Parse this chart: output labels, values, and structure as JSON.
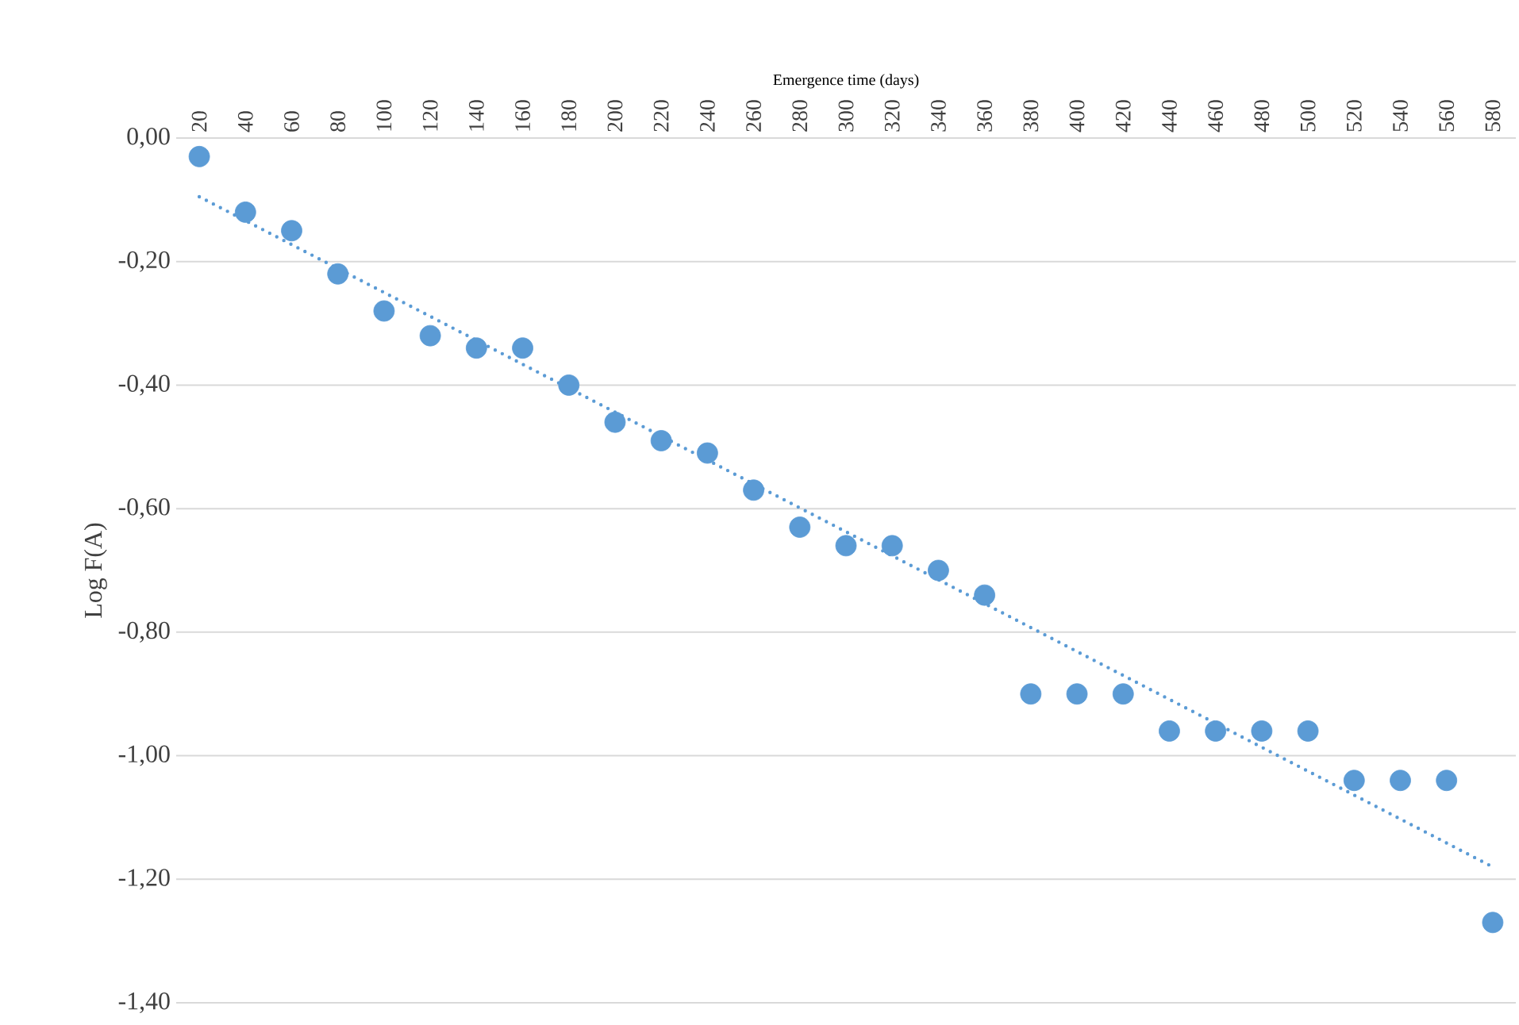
{
  "chart_data": {
    "type": "scatter",
    "xlabel": "Emergence time (days)",
    "ylabel": "Log F(A)",
    "xlim": [
      10,
      590
    ],
    "xticks": [
      20,
      40,
      60,
      80,
      100,
      120,
      140,
      160,
      180,
      200,
      220,
      240,
      260,
      280,
      300,
      320,
      340,
      360,
      380,
      400,
      420,
      440,
      460,
      480,
      500,
      520,
      540,
      560,
      580
    ],
    "ylim": [
      -1.4,
      0
    ],
    "yticks": [
      {
        "value": 0,
        "label": "0,00"
      },
      {
        "value": -0.2,
        "label": "-0,20"
      },
      {
        "value": -0.4,
        "label": "-0,40"
      },
      {
        "value": -0.6,
        "label": "-0,60"
      },
      {
        "value": -0.8,
        "label": "-0,80"
      },
      {
        "value": -1.0,
        "label": "-1,00"
      },
      {
        "value": -1.2,
        "label": "-1,20"
      },
      {
        "value": -1.4,
        "label": "-1,40"
      }
    ],
    "grid": "y",
    "x": [
      20,
      40,
      60,
      80,
      100,
      120,
      140,
      160,
      180,
      200,
      220,
      240,
      260,
      280,
      300,
      320,
      340,
      360,
      380,
      400,
      420,
      440,
      460,
      480,
      500,
      520,
      540,
      560,
      580
    ],
    "series": [
      {
        "type": "scatter",
        "color": "#5b9bd5",
        "marker": "circle",
        "values": [
          -0.03,
          -0.12,
          -0.15,
          -0.22,
          -0.28,
          -0.32,
          -0.34,
          -0.34,
          -0.4,
          -0.46,
          -0.49,
          -0.51,
          -0.57,
          -0.63,
          -0.66,
          -0.66,
          -0.7,
          -0.74,
          -0.9,
          -0.9,
          -0.9,
          -0.96,
          -0.96,
          -0.96,
          -0.96,
          -1.04,
          -1.04,
          -1.04,
          -1.27
        ]
      },
      {
        "type": "line",
        "color": "#5b9bd5",
        "marker": "none",
        "line_style": "dotted",
        "x": [
          20,
          580
        ],
        "values": [
          -0.095,
          -1.18
        ]
      }
    ]
  }
}
